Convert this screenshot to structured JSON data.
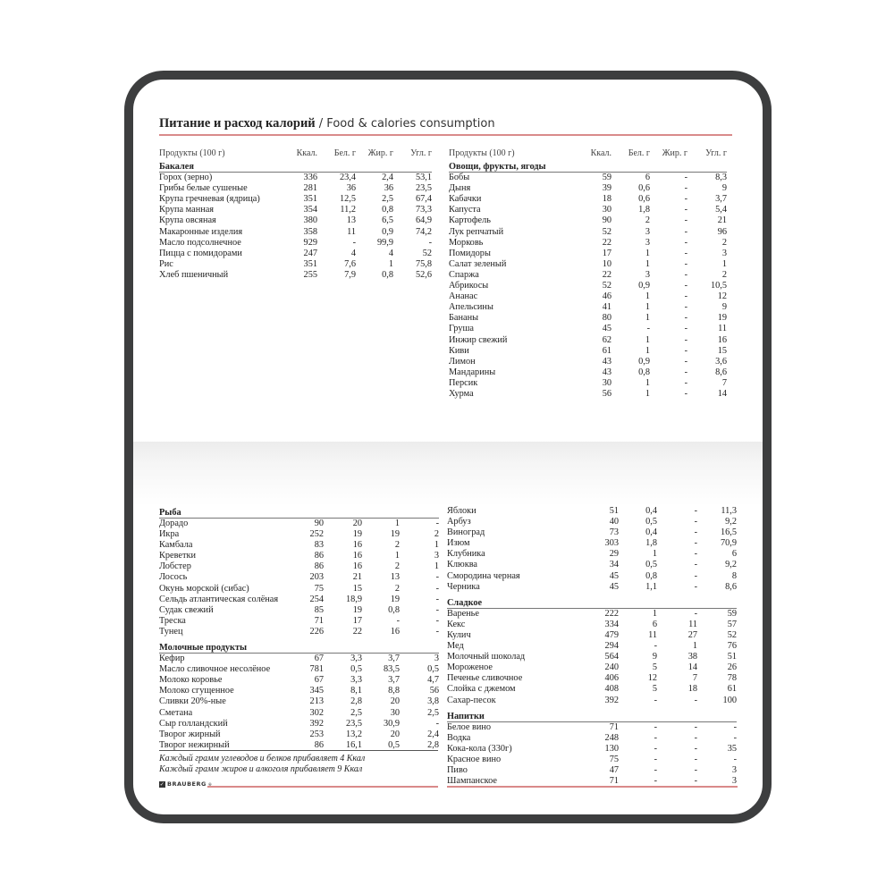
{
  "title": {
    "ru": "Питание и расход калорий",
    "en": " / Food & calories consumption"
  },
  "columns": [
    "Продукты (100 г)",
    "Ккал.",
    "Бел. г",
    "Жир. г",
    "Угл. г"
  ],
  "blocks": [
    {
      "id": "top-left",
      "header": true,
      "groups": [
        {
          "title": "Бакалея",
          "rows": [
            [
              "Горох (зерно)",
              "336",
              "23,4",
              "2,4",
              "53,1"
            ],
            [
              "Грибы белые сушеные",
              "281",
              "36",
              "36",
              "23,5"
            ],
            [
              "Крупа гречневая (ядрица)",
              "351",
              "12,5",
              "2,5",
              "67,4"
            ],
            [
              "Крупа манная",
              "354",
              "11,2",
              "0,8",
              "73,3"
            ],
            [
              "Крупа овсяная",
              "380",
              "13",
              "6,5",
              "64,9"
            ],
            [
              "Макаронные изделия",
              "358",
              "11",
              "0,9",
              "74,2"
            ],
            [
              "Масло подсолнечное",
              "929",
              "-",
              "99,9",
              "-"
            ],
            [
              "Пицца с помидорами",
              "247",
              "4",
              "4",
              "52"
            ],
            [
              "Рис",
              "351",
              "7,6",
              "1",
              "75,8"
            ],
            [
              "Хлеб пшеничный",
              "255",
              "7,9",
              "0,8",
              "52,6"
            ]
          ]
        }
      ]
    },
    {
      "id": "top-right",
      "header": true,
      "groups": [
        {
          "title": "Овощи, фрукты, ягоды",
          "rows": [
            [
              "Бобы",
              "59",
              "6",
              "-",
              "8,3"
            ],
            [
              "Дыня",
              "39",
              "0,6",
              "-",
              "9"
            ],
            [
              "Кабачки",
              "18",
              "0,6",
              "-",
              "3,7"
            ],
            [
              "Капуста",
              "30",
              "1,8",
              "-",
              "5,4"
            ],
            [
              "Картофель",
              "90",
              "2",
              "-",
              "21"
            ],
            [
              "Лук репчатый",
              "52",
              "3",
              "-",
              "96"
            ],
            [
              "Морковь",
              "22",
              "3",
              "-",
              "2"
            ],
            [
              "Помидоры",
              "17",
              "1",
              "-",
              "3"
            ],
            [
              "Салат зеленый",
              "10",
              "1",
              "-",
              "1"
            ],
            [
              "Спаржа",
              "22",
              "3",
              "-",
              "2"
            ],
            [
              "Абрикосы",
              "52",
              "0,9",
              "-",
              "10,5"
            ],
            [
              "Ананас",
              "46",
              "1",
              "-",
              "12"
            ],
            [
              "Апельсины",
              "41",
              "1",
              "-",
              "9"
            ],
            [
              "Бананы",
              "80",
              "1",
              "-",
              "19"
            ],
            [
              "Груша",
              "45",
              "-",
              "-",
              "11"
            ],
            [
              "Инжир свежий",
              "62",
              "1",
              "-",
              "16"
            ],
            [
              "Киви",
              "61",
              "1",
              "-",
              "15"
            ],
            [
              "Лимон",
              "43",
              "0,9",
              "-",
              "3,6"
            ],
            [
              "Мандарины",
              "43",
              "0,8",
              "-",
              "8,6"
            ],
            [
              "Персик",
              "30",
              "1",
              "-",
              "7"
            ],
            [
              "Хурма",
              "56",
              "1",
              "-",
              "14"
            ]
          ]
        }
      ]
    },
    {
      "id": "bottom-left",
      "header": false,
      "groups": [
        {
          "title": "Рыба",
          "rows": [
            [
              "Дорадо",
              "90",
              "20",
              "1",
              "-"
            ],
            [
              "Икра",
              "252",
              "19",
              "19",
              "2"
            ],
            [
              "Камбала",
              "83",
              "16",
              "2",
              "1"
            ],
            [
              "Креветки",
              "86",
              "16",
              "1",
              "3"
            ],
            [
              "Лобстер",
              "86",
              "16",
              "2",
              "1"
            ],
            [
              "Лосось",
              "203",
              "21",
              "13",
              "-"
            ],
            [
              "Окунь морской (сибас)",
              "75",
              "15",
              "2",
              "-"
            ],
            [
              "Сельдь атлантическая солёная",
              "254",
              "18,9",
              "19",
              "-"
            ],
            [
              "Судак свежий",
              "85",
              "19",
              "0,8",
              "-"
            ],
            [
              "Треска",
              "71",
              "17",
              "-",
              "-"
            ],
            [
              "Тунец",
              "226",
              "22",
              "16",
              "-"
            ]
          ]
        },
        {
          "title": "Молочные продукты",
          "rows": [
            [
              "Кефир",
              "67",
              "3,3",
              "3,7",
              "3"
            ],
            [
              "Масло сливочное несолёное",
              "781",
              "0,5",
              "83,5",
              "0,5"
            ],
            [
              "Молоко коровье",
              "67",
              "3,3",
              "3,7",
              "4,7"
            ],
            [
              "Молоко сгущенное",
              "345",
              "8,1",
              "8,8",
              "56"
            ],
            [
              "Сливки 20%-ные",
              "213",
              "2,8",
              "20",
              "3,8"
            ],
            [
              "Сметана",
              "302",
              "2,5",
              "30",
              "2,5"
            ],
            [
              "Сыр голландский",
              "392",
              "23,5",
              "30,9",
              "-"
            ],
            [
              "Творог жирный",
              "253",
              "13,2",
              "20",
              "2,4"
            ],
            [
              "Творог нежирный",
              "86",
              "16,1",
              "0,5",
              "2,8"
            ]
          ]
        }
      ]
    },
    {
      "id": "bottom-right",
      "header": false,
      "groups": [
        {
          "title": "",
          "rows": [
            [
              "Яблоки",
              "51",
              "0,4",
              "-",
              "11,3"
            ],
            [
              "Арбуз",
              "40",
              "0,5",
              "-",
              "9,2"
            ],
            [
              "Виноград",
              "73",
              "0,4",
              "-",
              "16,5"
            ],
            [
              "Изюм",
              "303",
              "1,8",
              "-",
              "70,9"
            ],
            [
              "Клубника",
              "29",
              "1",
              "-",
              "6"
            ],
            [
              "Клюква",
              "34",
              "0,5",
              "-",
              "9,2"
            ],
            [
              "Смородина черная",
              "45",
              "0,8",
              "-",
              "8"
            ],
            [
              "Черника",
              "45",
              "1,1",
              "-",
              "8,6"
            ]
          ]
        },
        {
          "title": "Сладкое",
          "rows": [
            [
              "Варенье",
              "222",
              "1",
              "-",
              "59"
            ],
            [
              "Кекс",
              "334",
              "6",
              "11",
              "57"
            ],
            [
              "Кулич",
              "479",
              "11",
              "27",
              "52"
            ],
            [
              "Мед",
              "294",
              "-",
              "1",
              "76"
            ],
            [
              "Молочный шоколад",
              "564",
              "9",
              "38",
              "51"
            ],
            [
              "Мороженое",
              "240",
              "5",
              "14",
              "26"
            ],
            [
              "Печенье сливочное",
              "406",
              "12",
              "7",
              "78"
            ],
            [
              "Слойка с джемом",
              "408",
              "5",
              "18",
              "61"
            ],
            [
              "Сахар-песок",
              "392",
              "-",
              "-",
              "100"
            ]
          ]
        },
        {
          "title": "Напитки",
          "rows": [
            [
              "Белое вино",
              "71",
              "-",
              "-",
              "-"
            ],
            [
              "Водка",
              "248",
              "-",
              "-",
              "-"
            ],
            [
              "Кока-кола (330г)",
              "130",
              "-",
              "-",
              "35"
            ],
            [
              "Красное вино",
              "75",
              "-",
              "-",
              "-"
            ],
            [
              "Пиво",
              "47",
              "-",
              "-",
              "3"
            ],
            [
              "Шампанское",
              "71",
              "-",
              "-",
              "3"
            ]
          ]
        }
      ]
    }
  ],
  "notes": [
    "Каждый грамм углеводов и белков прибавляет 4 Ккал",
    "Каждый грамм жиров и алкоголя прибавляет 9 Ккал"
  ],
  "brand": "BRAUBERG",
  "colors": {
    "frame": "#3d3e3f",
    "accent_line": "#d98a8a"
  }
}
